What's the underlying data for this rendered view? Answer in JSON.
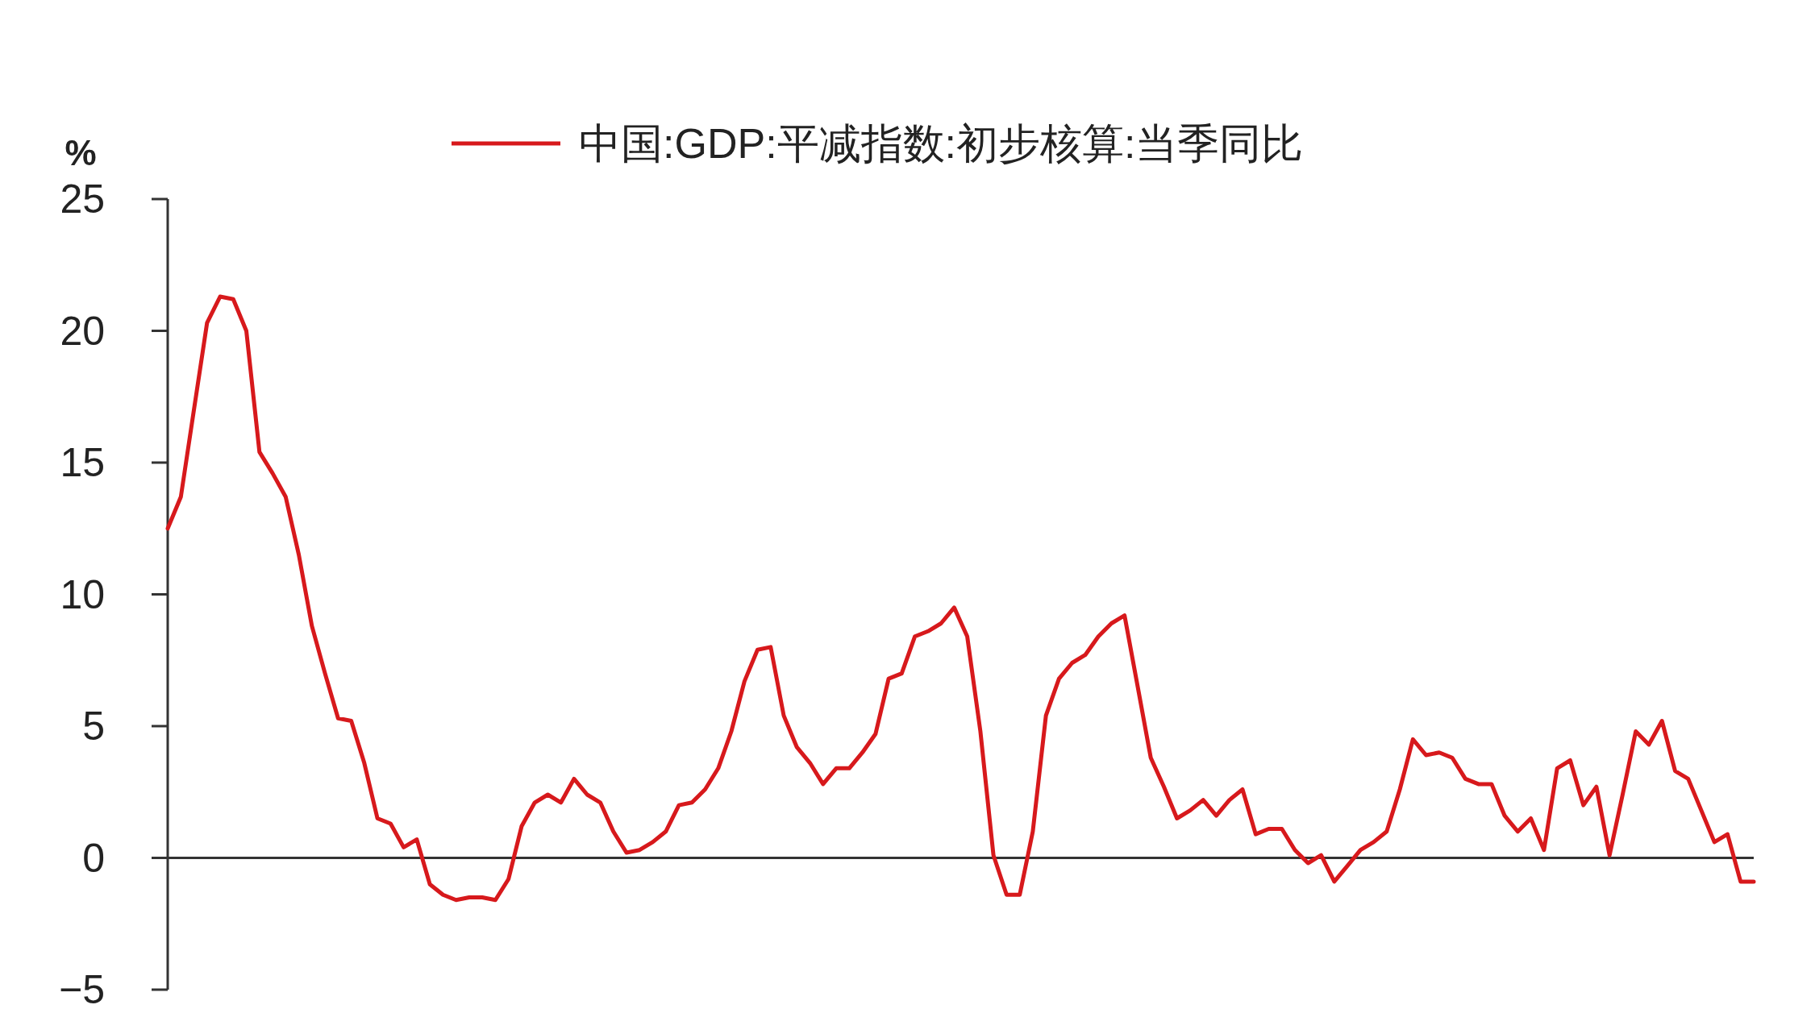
{
  "chart_data": {
    "type": "line",
    "ylabel": "%",
    "legend": "top",
    "ylim": [
      -5,
      25
    ],
    "yticks": [
      -5,
      0,
      5,
      10,
      15,
      20,
      25
    ],
    "categories": [
      null,
      null,
      null,
      null,
      null,
      null,
      null,
      null,
      null,
      null,
      null,
      null,
      null,
      null,
      null,
      null,
      null,
      null,
      null,
      null,
      null,
      null,
      null,
      null,
      null,
      null,
      null,
      null,
      null,
      null,
      null,
      null,
      null,
      null,
      null,
      null,
      null,
      null,
      null,
      null,
      null,
      null,
      null,
      null,
      null,
      null,
      null,
      null,
      null,
      null,
      null,
      null,
      null,
      null,
      null,
      null,
      null,
      null,
      null,
      null,
      null,
      null,
      null,
      null,
      null,
      null,
      null,
      null,
      null,
      null,
      null,
      null,
      null,
      null,
      null,
      null,
      null,
      null,
      null,
      null,
      null,
      null,
      null,
      null,
      null,
      null,
      null,
      null,
      null,
      null,
      null,
      null,
      null,
      null,
      null,
      null,
      null,
      null,
      null,
      null,
      null,
      null,
      null,
      null,
      null,
      null,
      null,
      null,
      null,
      null,
      null,
      null,
      null,
      null,
      null,
      null,
      null,
      null,
      null,
      null,
      null,
      null
    ],
    "series": [
      {
        "name": "中国:GDP:平减指数:初步核算:当季同比",
        "color": "#d7191c",
        "values": [
          12.5,
          13.7,
          17,
          20.3,
          21.3,
          21.2,
          20,
          15.4,
          14.6,
          13.7,
          11.5,
          8.8,
          7,
          5.3,
          5.2,
          3.6,
          1.5,
          1.3,
          0.4,
          0.7,
          -1,
          -1.4,
          -1.6,
          -1.5,
          -1.5,
          -1.6,
          -0.8,
          1.2,
          2.1,
          2.4,
          2.1,
          3.0,
          2.4,
          2.1,
          1.0,
          0.2,
          0.3,
          0.6,
          1.0,
          2.0,
          2.1,
          2.6,
          3.4,
          4.8,
          6.7,
          7.9,
          8.0,
          5.4,
          4.2,
          3.6,
          2.8,
          3.4,
          3.4,
          4.0,
          4.7,
          6.8,
          7.0,
          8.4,
          8.6,
          8.9,
          9.5,
          8.4,
          4.8,
          0.1,
          -1.4,
          -1.4,
          1.0,
          5.4,
          6.8,
          7.4,
          7.7,
          8.4,
          8.9,
          9.2,
          6.5,
          3.8,
          2.7,
          1.5,
          1.8,
          2.2,
          1.6,
          2.2,
          2.6,
          0.9,
          1.1,
          1.1,
          0.3,
          -0.2,
          0.1,
          -0.9,
          -0.3,
          0.3,
          0.6,
          1.0,
          2.6,
          4.5,
          3.9,
          4.0,
          3.8,
          3.0,
          2.8,
          2.8,
          1.6,
          1.0,
          1.5,
          0.3,
          3.4,
          3.7,
          2.0,
          2.7,
          0.1,
          2.4,
          4.8,
          4.3,
          5.2,
          3.3,
          3.0,
          1.8,
          0.6,
          0.9,
          -0.9,
          -0.9
        ]
      }
    ]
  }
}
